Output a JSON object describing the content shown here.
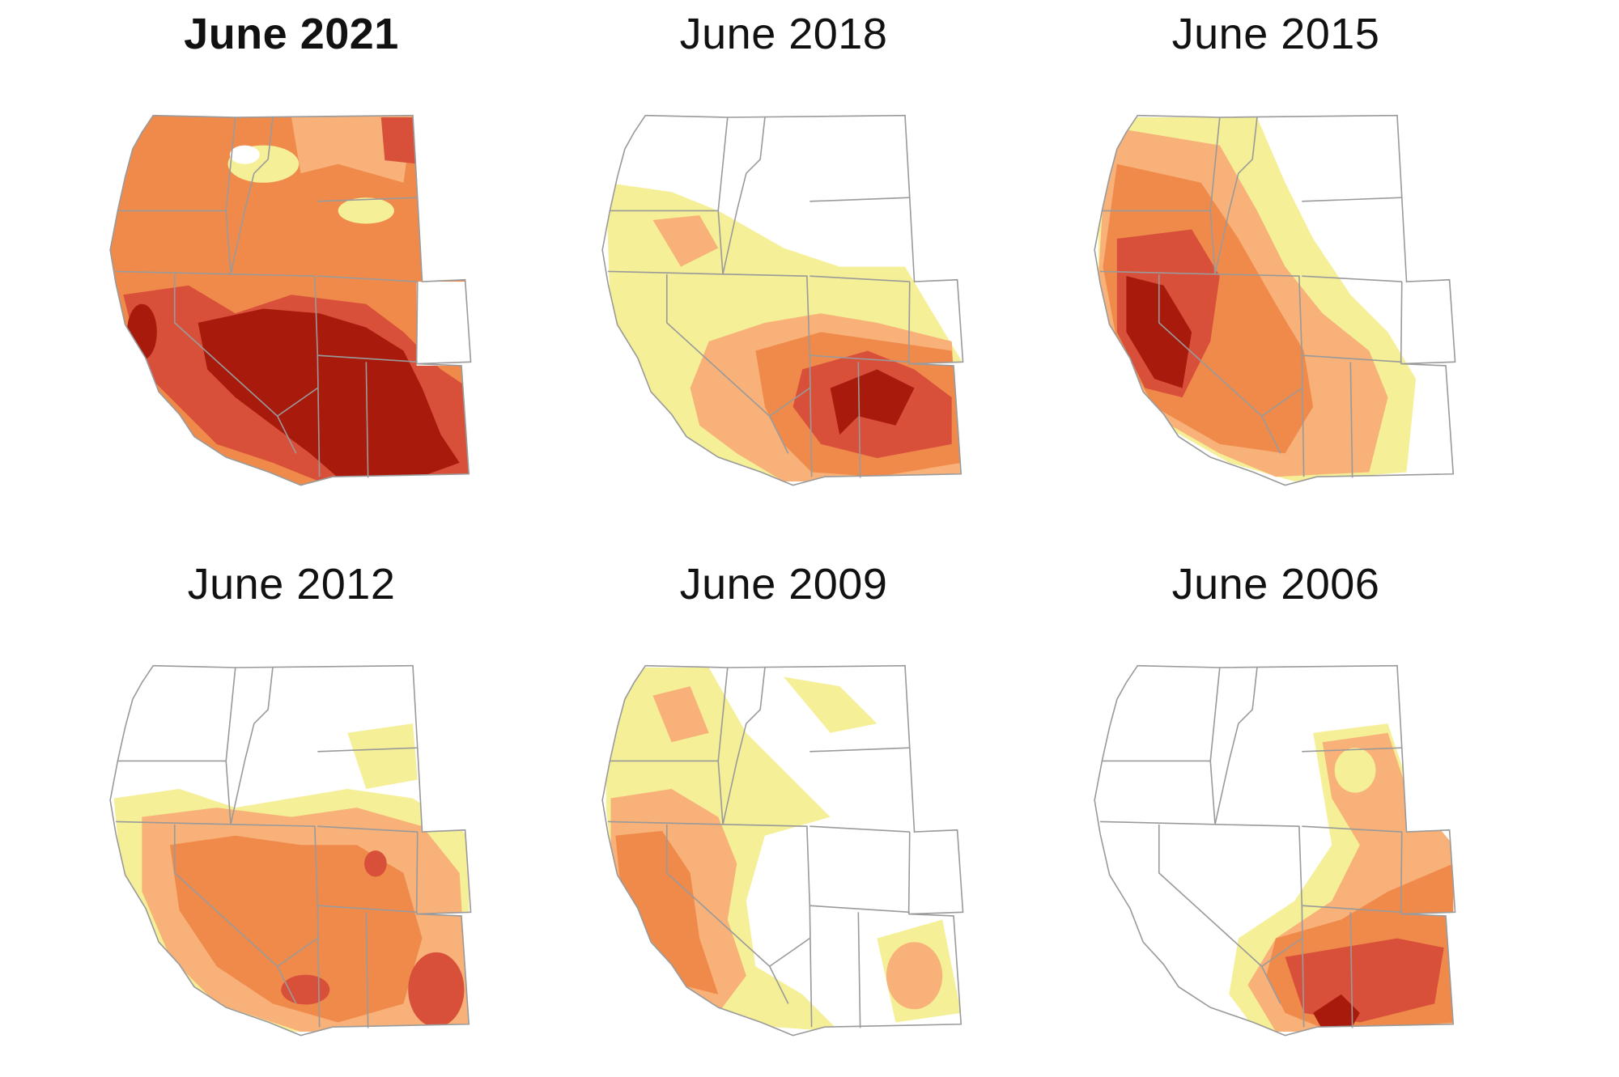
{
  "colors": {
    "none": "#ffffff",
    "abnormally_dry": "#f5ef97",
    "moderate": "#f8b178",
    "severe": "#f08a4b",
    "extreme": "#d8503a",
    "exceptional": "#a81a0c",
    "state_border": "#9a9a9a"
  },
  "panels": [
    {
      "title": "June 2021",
      "emphasis": true,
      "drought_levels": {
        "abnormally_dry": 0.05,
        "moderate": 0.95,
        "severe": 0.9,
        "extreme": 0.62,
        "exceptional": 0.32
      }
    },
    {
      "title": "June 2018",
      "emphasis": false,
      "drought_levels": {
        "abnormally_dry": 0.68,
        "moderate": 0.52,
        "severe": 0.4,
        "extreme": 0.25,
        "exceptional": 0.1
      }
    },
    {
      "title": "June 2015",
      "emphasis": false,
      "drought_levels": {
        "abnormally_dry": 0.78,
        "moderate": 0.6,
        "severe": 0.48,
        "extreme": 0.25,
        "exceptional": 0.12
      }
    },
    {
      "title": "June 2012",
      "emphasis": false,
      "drought_levels": {
        "abnormally_dry": 0.8,
        "moderate": 0.65,
        "severe": 0.45,
        "extreme": 0.06,
        "exceptional": 0.0
      }
    },
    {
      "title": "June 2009",
      "emphasis": false,
      "drought_levels": {
        "abnormally_dry": 0.55,
        "moderate": 0.35,
        "severe": 0.2,
        "extreme": 0.0,
        "exceptional": 0.0
      }
    },
    {
      "title": "June 2006",
      "emphasis": false,
      "drought_levels": {
        "abnormally_dry": 0.35,
        "moderate": 0.28,
        "severe": 0.22,
        "extreme": 0.1,
        "exceptional": 0.02
      }
    }
  ]
}
